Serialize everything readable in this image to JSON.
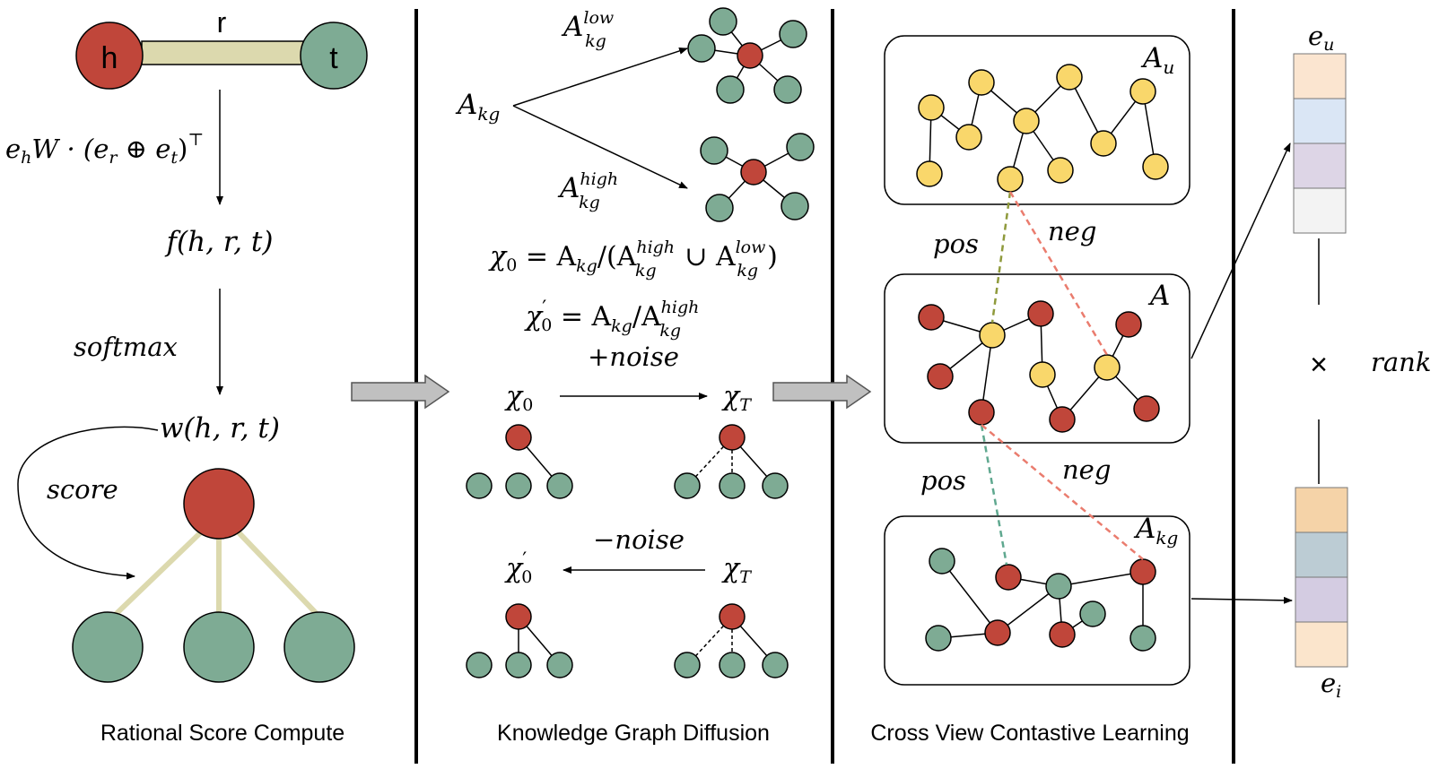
{
  "colors": {
    "red_node": "#c0463a",
    "green_node": "#7eab94",
    "yellow_node": "#f9d76b",
    "edge_tan": "#dcd9ae",
    "arrow_gray": "#c0c0c0",
    "divider": "#000000",
    "dash_olive": "#8f9a3c",
    "dash_salmon": "#ea7c6e",
    "dash_teal": "#5fa88f"
  },
  "panel1": {
    "caption": "Rational Score Compute",
    "node_h": "h",
    "node_t": "t",
    "edge_r": "r",
    "formula_main": "e",
    "formula_sub_h": "h",
    "formula_W": "W · (e",
    "formula_sub_r": "r",
    "formula_oplus": " ⊕ e",
    "formula_sub_t": "t",
    "formula_close": ")",
    "formula_sup": "⊤",
    "f_label": "f(h, r, t)",
    "softmax": "softmax",
    "w_label": "w(h, r, t)",
    "score": "score"
  },
  "panel2": {
    "caption": "Knowledge Graph Diffusion",
    "A": "A",
    "kg": "kg",
    "low": "low",
    "high": "high",
    "chi": "χ",
    "zero": "0",
    "T": "T",
    "prime": "′",
    "eq1_rest": " = A",
    "slash_paren": "/(A",
    "cup": " ∪ A",
    "close": ")",
    "slash": "/A",
    "plus_noise": "+noise",
    "minus_noise": "−noise"
  },
  "panel3": {
    "caption": "Cross View Contastive Learning",
    "label_u": "A",
    "sub_u": "u",
    "label_A": "A",
    "label_kg": "A",
    "sub_kg": "kg",
    "pos": "pos",
    "neg": "neg"
  },
  "panel4": {
    "e": "e",
    "sub_u": "u",
    "sub_i": "i",
    "times": "×",
    "rank": "rank",
    "user_colors": [
      "#fbe5d0",
      "#dae6f5",
      "#ddd5e6",
      "#f3f3f3"
    ],
    "item_colors": [
      "#f5d3a8",
      "#bcccd4",
      "#d4cce2",
      "#fbe5cc"
    ]
  }
}
